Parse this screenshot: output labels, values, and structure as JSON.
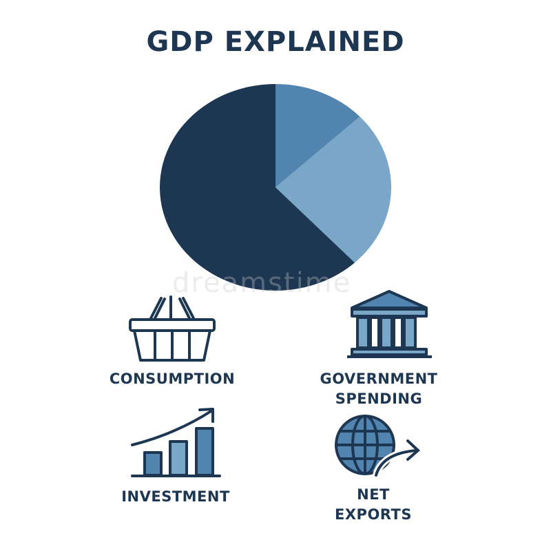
{
  "title": "GDP EXPLAINED",
  "watermark": "dreamstime",
  "colors": {
    "dark": "#1d3651",
    "medium": "#5284b0",
    "light": "#7aa7c7",
    "text": "#1d3651"
  },
  "chart_data": {
    "type": "pie",
    "title": "GDP EXPLAINED",
    "start": "12 o'clock, clockwise",
    "slices": [
      {
        "value": 13,
        "color": "#5284b0"
      },
      {
        "value": 25,
        "color": "#7aa7c7"
      },
      {
        "value": 62,
        "color": "#1d3651"
      }
    ],
    "legend": "none"
  },
  "components": [
    {
      "label": "CONSUMPTION",
      "icon": "shopping-basket-icon"
    },
    {
      "label": "GOVERNMENT SPENDING",
      "line1": "GOVERNMENT",
      "line2": "SPENDING",
      "icon": "government-building-icon"
    },
    {
      "label": "INVESTMENT",
      "icon": "rising-bar-chart-icon"
    },
    {
      "label": "NET EXPORTS",
      "line1": "NET",
      "line2": "EXPORTS",
      "icon": "globe-arrow-icon"
    }
  ]
}
